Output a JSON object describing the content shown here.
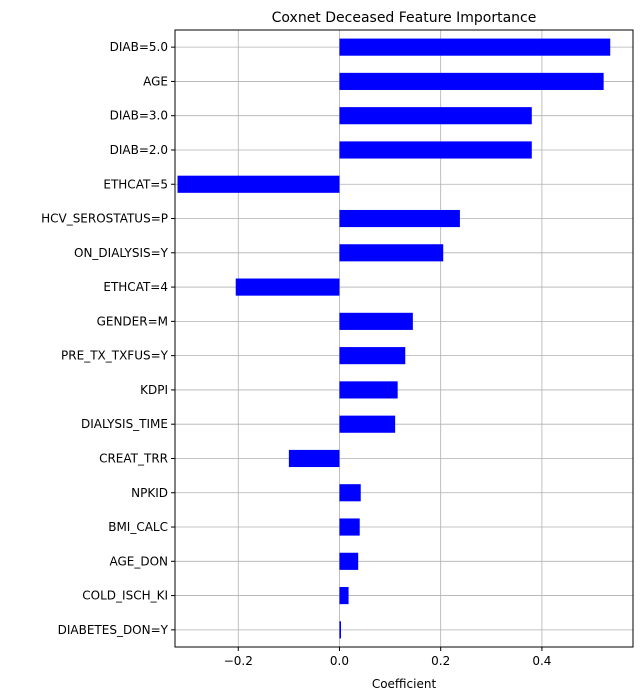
{
  "chart_data": {
    "type": "bar",
    "orientation": "horizontal",
    "title": "Coxnet Deceased Feature Importance",
    "xlabel": "Coefficient",
    "ylabel": "",
    "xlim": [
      -0.325,
      0.58
    ],
    "xticks": [
      -0.2,
      0.0,
      0.2,
      0.4
    ],
    "xtick_labels": [
      "−0.2",
      "0.0",
      "0.2",
      "0.4"
    ],
    "grid": true,
    "bar_color": "#0000ff",
    "categories": [
      "DIAB=5.0",
      "AGE",
      "DIAB=3.0",
      "DIAB=2.0",
      "ETHCAT=5",
      "HCV_SEROSTATUS=P",
      "ON_DIALYSIS=Y",
      "ETHCAT=4",
      "GENDER=M",
      "PRE_TX_TXFUS=Y",
      "KDPI",
      "DIALYSIS_TIME",
      "CREAT_TRR",
      "NPKID",
      "BMI_CALC",
      "AGE_DON",
      "COLD_ISCH_KI",
      "DIABETES_DON=Y"
    ],
    "values": [
      0.535,
      0.522,
      0.38,
      0.38,
      -0.32,
      0.238,
      0.205,
      -0.205,
      0.145,
      0.13,
      0.115,
      0.11,
      -0.1,
      0.042,
      0.04,
      0.037,
      0.018,
      0.003
    ]
  }
}
